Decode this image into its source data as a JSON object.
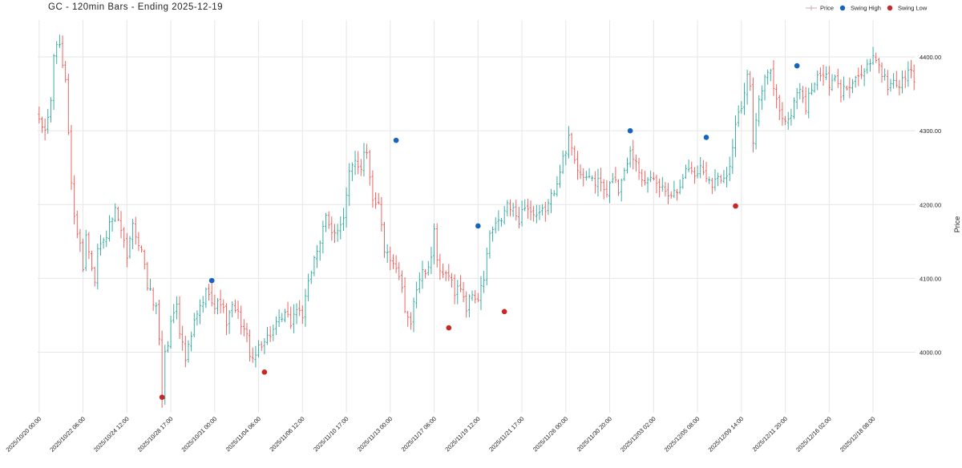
{
  "chart_data": {
    "type": "ohlc",
    "title": "GC - 120min Bars - Ending 2025-12-19",
    "ylabel": "Price",
    "xlabel": "",
    "ylim": [
      3918,
      4450
    ],
    "bar_count": 300,
    "x_tick_labels": [
      {
        "label": "2025/10/20 00:00",
        "bar": 0
      },
      {
        "label": "2025/10/22 06:00",
        "bar": 15
      },
      {
        "label": "2025/10/24 12:00",
        "bar": 30
      },
      {
        "label": "2025/10/28 17:00",
        "bar": 45
      },
      {
        "label": "2025/10/31 00:00",
        "bar": 60
      },
      {
        "label": "2025/11/04 06:00",
        "bar": 75
      },
      {
        "label": "2025/11/06 12:00",
        "bar": 90
      },
      {
        "label": "2025/11/10 17:00",
        "bar": 105
      },
      {
        "label": "2025/11/13 00:00",
        "bar": 120
      },
      {
        "label": "2025/11/17 06:00",
        "bar": 135
      },
      {
        "label": "2025/11/19 12:00",
        "bar": 150
      },
      {
        "label": "2025/11/21 17:00",
        "bar": 165
      },
      {
        "label": "2025/11/26 00:00",
        "bar": 180
      },
      {
        "label": "2025/11/30 20:00",
        "bar": 195
      },
      {
        "label": "2025/12/03 02:00",
        "bar": 210
      },
      {
        "label": "2025/12/05 08:00",
        "bar": 225
      },
      {
        "label": "2025/12/09 14:00",
        "bar": 240
      },
      {
        "label": "2025/12/11 20:00",
        "bar": 255
      },
      {
        "label": "2025/12/16 02:00",
        "bar": 270
      },
      {
        "label": "2025/12/18 08:00",
        "bar": 285
      }
    ],
    "y_ticks": [
      {
        "value": 4000,
        "label": "4000.00"
      },
      {
        "value": 4100,
        "label": "4100.00"
      },
      {
        "value": 4200,
        "label": "4200.00"
      },
      {
        "value": 4300,
        "label": "4300.00"
      },
      {
        "value": 4400,
        "label": "4400.00"
      }
    ],
    "close_anchors": [
      [
        0,
        4310
      ],
      [
        2,
        4300
      ],
      [
        4,
        4340
      ],
      [
        5,
        4400
      ],
      [
        6,
        4420
      ],
      [
        7,
        4410
      ],
      [
        8,
        4390
      ],
      [
        9,
        4370
      ],
      [
        10,
        4300
      ],
      [
        11,
        4230
      ],
      [
        12,
        4180
      ],
      [
        14,
        4150
      ],
      [
        15,
        4110
      ],
      [
        16,
        4160
      ],
      [
        17,
        4140
      ],
      [
        19,
        4100
      ],
      [
        20,
        4140
      ],
      [
        22,
        4150
      ],
      [
        24,
        4170
      ],
      [
        26,
        4190
      ],
      [
        28,
        4160
      ],
      [
        30,
        4130
      ],
      [
        32,
        4170
      ],
      [
        34,
        4150
      ],
      [
        36,
        4120
      ],
      [
        37,
        4090
      ],
      [
        38,
        4080
      ],
      [
        40,
        4060
      ],
      [
        41,
        4020
      ],
      [
        42,
        3940
      ],
      [
        43,
        4000
      ],
      [
        44,
        4010
      ],
      [
        45,
        4040
      ],
      [
        47,
        4070
      ],
      [
        48,
        4030
      ],
      [
        50,
        3990
      ],
      [
        52,
        4020
      ],
      [
        53,
        4040
      ],
      [
        55,
        4060
      ],
      [
        57,
        4080
      ],
      [
        58,
        4085
      ],
      [
        60,
        4060
      ],
      [
        62,
        4070
      ],
      [
        64,
        4040
      ],
      [
        66,
        4060
      ],
      [
        68,
        4050
      ],
      [
        69,
        4040
      ],
      [
        70,
        4030
      ],
      [
        71,
        4020
      ],
      [
        72,
        4000
      ],
      [
        73,
        3985
      ],
      [
        74,
        3995
      ],
      [
        75,
        4010
      ],
      [
        78,
        4020
      ],
      [
        80,
        4030
      ],
      [
        82,
        4040
      ],
      [
        84,
        4050
      ],
      [
        86,
        4040
      ],
      [
        88,
        4060
      ],
      [
        90,
        4050
      ],
      [
        92,
        4090
      ],
      [
        94,
        4130
      ],
      [
        96,
        4150
      ],
      [
        98,
        4180
      ],
      [
        100,
        4160
      ],
      [
        102,
        4170
      ],
      [
        104,
        4180
      ],
      [
        106,
        4240
      ],
      [
        108,
        4260
      ],
      [
        110,
        4250
      ],
      [
        111,
        4275
      ],
      [
        112,
        4270
      ],
      [
        113,
        4240
      ],
      [
        114,
        4210
      ],
      [
        116,
        4200
      ],
      [
        118,
        4140
      ],
      [
        119,
        4130
      ],
      [
        120,
        4120
      ],
      [
        122,
        4110
      ],
      [
        124,
        4090
      ],
      [
        125,
        4060
      ],
      [
        126,
        4050
      ],
      [
        127,
        4040
      ],
      [
        128,
        4070
      ],
      [
        129,
        4080
      ],
      [
        130,
        4100
      ],
      [
        132,
        4110
      ],
      [
        134,
        4130
      ],
      [
        135,
        4160
      ],
      [
        136,
        4120
      ],
      [
        138,
        4100
      ],
      [
        140,
        4110
      ],
      [
        142,
        4080
      ],
      [
        144,
        4090
      ],
      [
        146,
        4060
      ],
      [
        148,
        4080
      ],
      [
        150,
        4070
      ],
      [
        152,
        4100
      ],
      [
        154,
        4160
      ],
      [
        156,
        4170
      ],
      [
        158,
        4180
      ],
      [
        160,
        4200
      ],
      [
        162,
        4190
      ],
      [
        164,
        4180
      ],
      [
        166,
        4200
      ],
      [
        168,
        4190
      ],
      [
        170,
        4180
      ],
      [
        172,
        4190
      ],
      [
        174,
        4200
      ],
      [
        176,
        4220
      ],
      [
        178,
        4250
      ],
      [
        179,
        4260
      ],
      [
        180,
        4270
      ],
      [
        181,
        4290
      ],
      [
        182,
        4280
      ],
      [
        184,
        4250
      ],
      [
        186,
        4230
      ],
      [
        188,
        4240
      ],
      [
        190,
        4230
      ],
      [
        192,
        4230
      ],
      [
        194,
        4210
      ],
      [
        196,
        4240
      ],
      [
        198,
        4220
      ],
      [
        200,
        4250
      ],
      [
        202,
        4270
      ],
      [
        204,
        4260
      ],
      [
        206,
        4240
      ],
      [
        208,
        4230
      ],
      [
        210,
        4230
      ],
      [
        212,
        4225
      ],
      [
        214,
        4220
      ],
      [
        216,
        4215
      ],
      [
        218,
        4220
      ],
      [
        220,
        4240
      ],
      [
        222,
        4250
      ],
      [
        224,
        4240
      ],
      [
        226,
        4250
      ],
      [
        228,
        4240
      ],
      [
        230,
        4230
      ],
      [
        232,
        4235
      ],
      [
        234,
        4240
      ],
      [
        236,
        4250
      ],
      [
        238,
        4310
      ],
      [
        240,
        4330
      ],
      [
        242,
        4370
      ],
      [
        243,
        4360
      ],
      [
        244,
        4290
      ],
      [
        245,
        4320
      ],
      [
        246,
        4340
      ],
      [
        248,
        4370
      ],
      [
        250,
        4380
      ],
      [
        252,
        4340
      ],
      [
        254,
        4320
      ],
      [
        256,
        4310
      ],
      [
        258,
        4340
      ],
      [
        260,
        4360
      ],
      [
        262,
        4330
      ],
      [
        264,
        4360
      ],
      [
        266,
        4370
      ],
      [
        268,
        4380
      ],
      [
        270,
        4360
      ],
      [
        272,
        4370
      ],
      [
        274,
        4350
      ],
      [
        276,
        4360
      ],
      [
        278,
        4370
      ],
      [
        280,
        4375
      ],
      [
        282,
        4380
      ],
      [
        284,
        4390
      ],
      [
        286,
        4400
      ],
      [
        288,
        4380
      ],
      [
        290,
        4360
      ],
      [
        292,
        4370
      ],
      [
        294,
        4360
      ],
      [
        296,
        4375
      ],
      [
        298,
        4380
      ],
      [
        299,
        4370
      ]
    ],
    "series": [
      {
        "name": "Price",
        "type": "ohlc-bars",
        "up_color": "#26a69a",
        "down_color": "#ef5350"
      },
      {
        "name": "Swing High",
        "type": "scatter",
        "color": "#1565c0",
        "points": [
          {
            "bar": 59,
            "value": 4097
          },
          {
            "bar": 122,
            "value": 4287
          },
          {
            "bar": 150,
            "value": 4171
          },
          {
            "bar": 202,
            "value": 4300
          },
          {
            "bar": 228,
            "value": 4291
          },
          {
            "bar": 259,
            "value": 4388
          }
        ]
      },
      {
        "name": "Swing Low",
        "type": "scatter",
        "color": "#c62828",
        "points": [
          {
            "bar": 42,
            "value": 3939
          },
          {
            "bar": 77,
            "value": 3973
          },
          {
            "bar": 140,
            "value": 4033
          },
          {
            "bar": 159,
            "value": 4055
          },
          {
            "bar": 238,
            "value": 4198
          }
        ]
      }
    ],
    "legend": {
      "placement": "top-right",
      "entries": [
        {
          "label": "Price",
          "marker": "line",
          "color": "#ef9a9a"
        },
        {
          "label": "Swing High",
          "marker": "dot",
          "color": "#1565c0"
        },
        {
          "label": "Swing Low",
          "marker": "dot",
          "color": "#c62828"
        }
      ]
    },
    "grid": true
  }
}
